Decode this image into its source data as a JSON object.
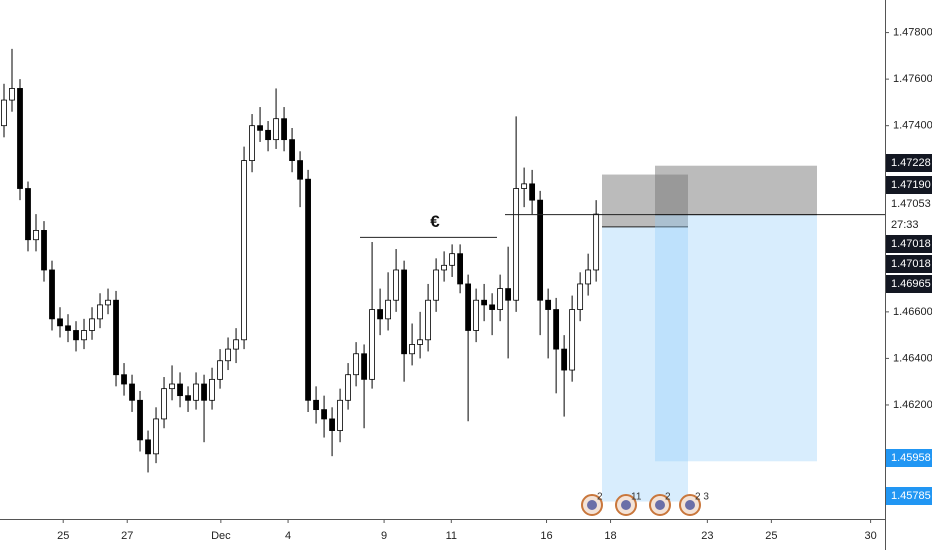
{
  "chart_data": {
    "type": "candlestick",
    "candles": [
      [
        1.474,
        1.4758,
        1.4735,
        1.4751
      ],
      [
        1.4751,
        1.4773,
        1.4746,
        1.4756
      ],
      [
        1.4756,
        1.476,
        1.4708,
        1.4713
      ],
      [
        1.4713,
        1.4716,
        1.4686,
        1.4691
      ],
      [
        1.4691,
        1.4702,
        1.4686,
        1.4695
      ],
      [
        1.4695,
        1.4699,
        1.4673,
        1.4678
      ],
      [
        1.4678,
        1.4682,
        1.4652,
        1.4657
      ],
      [
        1.4657,
        1.4662,
        1.4649,
        1.4654
      ],
      [
        1.4654,
        1.4659,
        1.4647,
        1.4652
      ],
      [
        1.4652,
        1.4656,
        1.4643,
        1.4648
      ],
      [
        1.4648,
        1.4657,
        1.4644,
        1.4652
      ],
      [
        1.4652,
        1.4662,
        1.4648,
        1.4657
      ],
      [
        1.4657,
        1.4668,
        1.4653,
        1.4663
      ],
      [
        1.4663,
        1.467,
        1.4659,
        1.4665
      ],
      [
        1.4665,
        1.4669,
        1.4628,
        1.4633
      ],
      [
        1.4633,
        1.4638,
        1.4624,
        1.4629
      ],
      [
        1.4629,
        1.4633,
        1.4617,
        1.4622
      ],
      [
        1.4622,
        1.4626,
        1.46,
        1.4605
      ],
      [
        1.4605,
        1.4609,
        1.4591,
        1.4599
      ],
      [
        1.4599,
        1.4619,
        1.4595,
        1.4614
      ],
      [
        1.4614,
        1.4632,
        1.461,
        1.4627
      ],
      [
        1.4627,
        1.4637,
        1.4622,
        1.4629
      ],
      [
        1.4629,
        1.4634,
        1.4619,
        1.4624
      ],
      [
        1.4624,
        1.4628,
        1.4617,
        1.4622
      ],
      [
        1.4622,
        1.4634,
        1.4618,
        1.4629
      ],
      [
        1.4629,
        1.4633,
        1.4604,
        1.4622
      ],
      [
        1.4622,
        1.4636,
        1.4618,
        1.4631
      ],
      [
        1.4631,
        1.4644,
        1.4627,
        1.4639
      ],
      [
        1.4639,
        1.4649,
        1.4635,
        1.4644
      ],
      [
        1.4644,
        1.4653,
        1.4638,
        1.4648
      ],
      [
        1.4648,
        1.4731,
        1.4644,
        1.4725
      ],
      [
        1.4725,
        1.4745,
        1.472,
        1.474
      ],
      [
        1.474,
        1.4748,
        1.4733,
        1.4738
      ],
      [
        1.4738,
        1.4742,
        1.4729,
        1.4734
      ],
      [
        1.4734,
        1.4756,
        1.473,
        1.4743
      ],
      [
        1.4743,
        1.4748,
        1.4729,
        1.4734
      ],
      [
        1.4734,
        1.4739,
        1.472,
        1.4725
      ],
      [
        1.4725,
        1.4729,
        1.4705,
        1.4717
      ],
      [
        1.4717,
        1.4721,
        1.4617,
        1.4622
      ],
      [
        1.4622,
        1.4628,
        1.4612,
        1.4618
      ],
      [
        1.4618,
        1.4624,
        1.4606,
        1.4614
      ],
      [
        1.4614,
        1.4619,
        1.4598,
        1.4609
      ],
      [
        1.4609,
        1.4627,
        1.4604,
        1.4622
      ],
      [
        1.4622,
        1.4638,
        1.4618,
        1.4633
      ],
      [
        1.4633,
        1.4647,
        1.4628,
        1.4642
      ],
      [
        1.4642,
        1.4646,
        1.461,
        1.4631
      ],
      [
        1.4631,
        1.469,
        1.4627,
        1.4661
      ],
      [
        1.4661,
        1.467,
        1.465,
        1.4657
      ],
      [
        1.4657,
        1.4677,
        1.4652,
        1.4665
      ],
      [
        1.4665,
        1.4687,
        1.466,
        1.4678
      ],
      [
        1.4678,
        1.4682,
        1.463,
        1.4642
      ],
      [
        1.4642,
        1.4655,
        1.4637,
        1.4646
      ],
      [
        1.4646,
        1.466,
        1.464,
        1.4648
      ],
      [
        1.4648,
        1.4672,
        1.4643,
        1.4665
      ],
      [
        1.4665,
        1.4683,
        1.466,
        1.4678
      ],
      [
        1.4678,
        1.4686,
        1.4673,
        1.468
      ],
      [
        1.468,
        1.4689,
        1.4675,
        1.4685
      ],
      [
        1.4685,
        1.4689,
        1.4668,
        1.4672
      ],
      [
        1.4672,
        1.4676,
        1.4613,
        1.4652
      ],
      [
        1.4652,
        1.467,
        1.4647,
        1.4665
      ],
      [
        1.4665,
        1.4672,
        1.4656,
        1.4663
      ],
      [
        1.4663,
        1.4668,
        1.465,
        1.4661
      ],
      [
        1.4661,
        1.4676,
        1.4656,
        1.467
      ],
      [
        1.467,
        1.4688,
        1.464,
        1.4665
      ],
      [
        1.4665,
        1.4744,
        1.466,
        1.4713
      ],
      [
        1.4713,
        1.4722,
        1.4705,
        1.4715
      ],
      [
        1.4715,
        1.4721,
        1.4702,
        1.4708
      ],
      [
        1.4708,
        1.4712,
        1.465,
        1.4665
      ],
      [
        1.4665,
        1.467,
        1.464,
        1.4661
      ],
      [
        1.4661,
        1.4666,
        1.4625,
        1.4644
      ],
      [
        1.4644,
        1.465,
        1.4615,
        1.4635
      ],
      [
        1.4635,
        1.4667,
        1.463,
        1.4661
      ],
      [
        1.4661,
        1.4677,
        1.4656,
        1.4672
      ],
      [
        1.4672,
        1.4685,
        1.4667,
        1.4678
      ],
      [
        1.4678,
        1.4708,
        1.4673,
        1.4702
      ]
    ],
    "xlim": [
      -0.5,
      110.1
    ],
    "ylim": [
      1.4571,
      1.4794
    ],
    "xticks": [
      {
        "value": 7.4,
        "label": "25"
      },
      {
        "value": 15.4,
        "label": "27"
      },
      {
        "value": 27.1,
        "label": "Dec"
      },
      {
        "value": 35.5,
        "label": "4"
      },
      {
        "value": 47.5,
        "label": "9"
      },
      {
        "value": 55.9,
        "label": "11"
      },
      {
        "value": 67.8,
        "label": "16"
      },
      {
        "value": 75.8,
        "label": "18"
      },
      {
        "value": 87.9,
        "label": "23"
      },
      {
        "value": 95.9,
        "label": "25"
      },
      {
        "value": 108.3,
        "label": "30"
      }
    ],
    "yticks": [
      {
        "value": 1.478,
        "label": "1.47800"
      },
      {
        "value": 1.476,
        "label": "1.47600"
      },
      {
        "value": 1.474,
        "label": "1.47400"
      },
      {
        "value": 1.466,
        "label": "1.46600"
      },
      {
        "value": 1.464,
        "label": "1.46400"
      },
      {
        "value": 1.462,
        "label": "1.46200"
      }
    ],
    "up_color": "#ffffff",
    "down_color": "#000000",
    "annotation": "€",
    "levels": [
      1.4692,
      1.47018
    ],
    "positions": [
      {
        "stop": 1.4719,
        "entry": 1.46965,
        "target": 1.45785
      },
      {
        "stop": 1.47228,
        "entry": 1.47018,
        "target": 1.45958
      }
    ],
    "price_labels": [
      {
        "label": "1.47228",
        "style": "dark"
      },
      {
        "label": "1.47190",
        "style": "dark"
      },
      {
        "label": "1.47053",
        "style": "light"
      },
      {
        "label": "27:33",
        "style": "light"
      },
      {
        "label": "1.47018",
        "style": "dark"
      },
      {
        "label": "1.47018",
        "style": "dark"
      },
      {
        "label": "1.46965",
        "style": "dark"
      },
      {
        "label": "1.45958",
        "style": "blue"
      },
      {
        "label": "1.45785",
        "style": "blue"
      }
    ],
    "events": [
      "2",
      "11",
      "2",
      "2 3"
    ]
  }
}
